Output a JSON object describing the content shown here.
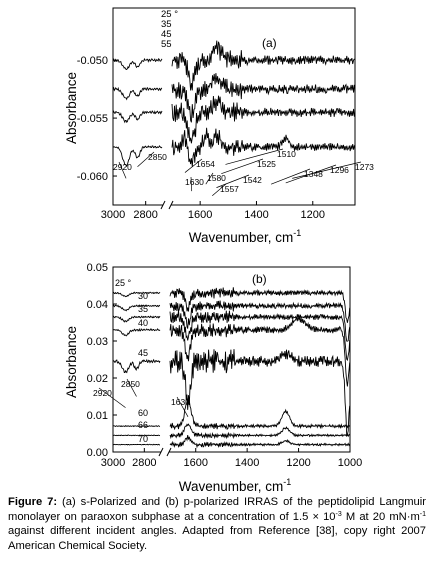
{
  "figure": {
    "caption_label": "Figure 7:",
    "caption_text": "(a) s-Polarized and (b) p-polarized IRRAS of the peptidolipid Langmuir monolayer on paraoxon subphase at a concentration of 1.5 × 10",
    "caption_exp1": "-3",
    "caption_mid": "M at 20 mN·m",
    "caption_exp2": "-1",
    "caption_end": " against different incident angles. Adapted from Reference [38], copy right 2007 American Chemical Society."
  },
  "chart_data": [
    {
      "type": "line",
      "panel_label": "(a)",
      "xlabel": "Wavenumber, cm",
      "xlabel_exp": "-1",
      "ylabel": "Absorbance",
      "x_axis_reversed": true,
      "x_axis_break": true,
      "x_segment_left": [
        3000,
        2700
      ],
      "x_segment_right": [
        1700,
        1050
      ],
      "x_ticks_left": [
        3000,
        2800
      ],
      "x_ticks_right": [
        1600,
        1400,
        1200
      ],
      "ylim": [
        -0.0625,
        -0.0455
      ],
      "y_ticks": [
        -0.05,
        -0.055,
        -0.06
      ],
      "y_tick_labels": [
        "-0.050",
        "-0.055",
        "-0.060"
      ],
      "grid": false,
      "series": [
        {
          "name": "25 °",
          "baseline": -0.05,
          "noise": 0.0004,
          "left_bands": [
            {
              "x": 2920,
              "depth": -0.0008,
              "width": 20
            },
            {
              "x": 2850,
              "depth": -0.0006,
              "width": 14
            }
          ],
          "right_bands": [
            {
              "x": 1630,
              "depth": -0.002,
              "width": 12
            },
            {
              "x": 1542,
              "depth": 0.0012,
              "width": 15
            }
          ]
        },
        {
          "name": "35",
          "baseline": -0.0525,
          "noise": 0.0004,
          "left_bands": [
            {
              "x": 2920,
              "depth": -0.0008,
              "width": 20
            },
            {
              "x": 2850,
              "depth": -0.0006,
              "width": 14
            }
          ],
          "right_bands": [
            {
              "x": 1630,
              "depth": -0.0022,
              "width": 12
            },
            {
              "x": 1542,
              "depth": 0.001,
              "width": 15
            }
          ]
        },
        {
          "name": "45",
          "baseline": -0.0545,
          "noise": 0.0004,
          "left_bands": [
            {
              "x": 2920,
              "depth": -0.0008,
              "width": 20
            },
            {
              "x": 2850,
              "depth": -0.0006,
              "width": 14
            }
          ],
          "right_bands": [
            {
              "x": 1630,
              "depth": -0.0025,
              "width": 12
            },
            {
              "x": 1542,
              "depth": 0.001,
              "width": 15
            }
          ]
        },
        {
          "name": "55",
          "baseline": -0.0575,
          "noise": 0.00035,
          "left_bands": [
            {
              "x": 2920,
              "depth": -0.0016,
              "width": 20
            },
            {
              "x": 2850,
              "depth": -0.0009,
              "width": 14
            }
          ],
          "right_bands": [
            {
              "x": 1654,
              "depth": 0.001,
              "width": 10
            },
            {
              "x": 1630,
              "depth": -0.0015,
              "width": 12
            },
            {
              "x": 1580,
              "depth": 0.001,
              "width": 10
            },
            {
              "x": 1542,
              "depth": 0.001,
              "width": 15
            },
            {
              "x": 1296,
              "depth": 0.0008,
              "width": 12
            }
          ]
        }
      ],
      "peak_labels": [
        {
          "text": "2920",
          "x": 2920,
          "y": -0.0602
        },
        {
          "text": "2850",
          "x": 2850,
          "y": -0.0592
        },
        {
          "text": "1654",
          "x": 1654,
          "y": -0.0597
        },
        {
          "text": "1630",
          "x": 1630,
          "y": -0.0613
        },
        {
          "text": "1580",
          "x": 1580,
          "y": -0.0607
        },
        {
          "text": "1557",
          "x": 1557,
          "y": -0.0617
        },
        {
          "text": "1542",
          "x": 1542,
          "y": -0.061
        },
        {
          "text": "1525",
          "x": 1525,
          "y": -0.0598
        },
        {
          "text": "1510",
          "x": 1510,
          "y": -0.059
        },
        {
          "text": "1348",
          "x": 1348,
          "y": -0.0607
        },
        {
          "text": "1296",
          "x": 1296,
          "y": -0.0606
        },
        {
          "text": "1273",
          "x": 1273,
          "y": -0.0602
        }
      ]
    },
    {
      "type": "line",
      "panel_label": "(b)",
      "xlabel": "Wavenumber, cm",
      "xlabel_exp": "-1",
      "ylabel": "Absorbance",
      "x_axis_reversed": true,
      "x_axis_break": true,
      "x_segment_left": [
        3000,
        2700
      ],
      "x_segment_right": [
        1700,
        1000
      ],
      "x_ticks_left": [
        3000,
        2800
      ],
      "x_ticks_right": [
        1600,
        1400,
        1200,
        1000
      ],
      "ylim": [
        0.0,
        0.05
      ],
      "y_ticks": [
        0.0,
        0.01,
        0.02,
        0.03,
        0.04,
        0.05
      ],
      "y_tick_labels": [
        "0.00",
        "0.01",
        "0.02",
        "0.03",
        "0.04",
        "0.05"
      ],
      "grid": false,
      "series": [
        {
          "name": "25 °",
          "baseline": 0.043,
          "noise": 0.0007,
          "left_bands": [
            {
              "x": 2920,
              "depth": -0.001,
              "width": 20
            }
          ],
          "right_bands": [
            {
              "x": 1630,
              "depth": -0.004,
              "width": 10
            },
            {
              "x": 1010,
              "depth": -0.008,
              "width": 8
            }
          ]
        },
        {
          "name": "30",
          "baseline": 0.0395,
          "noise": 0.0007,
          "left_bands": [
            {
              "x": 2920,
              "depth": -0.0012,
              "width": 20
            }
          ],
          "right_bands": [
            {
              "x": 1630,
              "depth": -0.005,
              "width": 10
            },
            {
              "x": 1010,
              "depth": -0.01,
              "width": 8
            }
          ]
        },
        {
          "name": "35",
          "baseline": 0.0365,
          "noise": 0.0008,
          "left_bands": [
            {
              "x": 2920,
              "depth": -0.0012,
              "width": 20
            }
          ],
          "right_bands": [
            {
              "x": 1630,
              "depth": -0.006,
              "width": 10
            },
            {
              "x": 1010,
              "depth": -0.012,
              "width": 8
            }
          ]
        },
        {
          "name": "40",
          "baseline": 0.033,
          "noise": 0.0009,
          "left_bands": [
            {
              "x": 2920,
              "depth": -0.0015,
              "width": 20
            }
          ],
          "right_bands": [
            {
              "x": 1630,
              "depth": -0.008,
              "width": 10
            },
            {
              "x": 1200,
              "depth": 0.003,
              "width": 25
            },
            {
              "x": 1010,
              "depth": -0.015,
              "width": 8
            }
          ]
        },
        {
          "name": "45",
          "baseline": 0.0245,
          "noise": 0.0015,
          "left_bands": [
            {
              "x": 2920,
              "depth": -0.003,
              "width": 20
            },
            {
              "x": 2850,
              "depth": -0.002,
              "width": 14
            }
          ],
          "right_bands": [
            {
              "x": 1630,
              "depth": -0.011,
              "width": 10
            },
            {
              "x": 1250,
              "depth": 0.002,
              "width": 20
            },
            {
              "x": 1010,
              "depth": -0.02,
              "width": 8
            }
          ]
        },
        {
          "name": "60",
          "baseline": 0.007,
          "noise": 0.0004,
          "left_bands": [],
          "right_bands": [
            {
              "x": 1630,
              "depth": 0.007,
              "width": 12
            },
            {
              "x": 1250,
              "depth": 0.004,
              "width": 15
            }
          ]
        },
        {
          "name": "66",
          "baseline": 0.0045,
          "noise": 0.0003,
          "left_bands": [],
          "right_bands": [
            {
              "x": 1630,
              "depth": 0.003,
              "width": 12
            },
            {
              "x": 1250,
              "depth": 0.002,
              "width": 15
            }
          ]
        },
        {
          "name": "70",
          "baseline": 0.002,
          "noise": 0.0003,
          "left_bands": [],
          "right_bands": [
            {
              "x": 1630,
              "depth": 0.002,
              "width": 12
            },
            {
              "x": 1250,
              "depth": 0.001,
              "width": 15
            }
          ]
        }
      ],
      "peak_labels": [
        {
          "text": "2920",
          "x": 2920,
          "y": 0.012
        },
        {
          "text": "2850",
          "x": 2850,
          "y": 0.015
        },
        {
          "text": "1630",
          "x": 1630,
          "y": 0.0095
        }
      ]
    }
  ]
}
